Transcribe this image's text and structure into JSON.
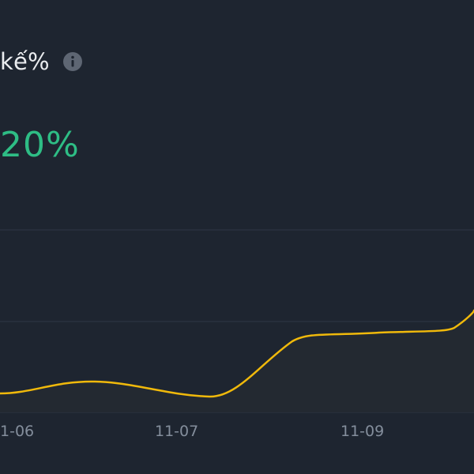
{
  "header": {
    "label": "kế%",
    "info_icon": "info-icon"
  },
  "metric": {
    "value": "20%"
  },
  "colors": {
    "background": "#1e2530",
    "line": "#f0b90b",
    "value": "#2ebd85",
    "grid": "#2f3846",
    "tick": "#848e9c"
  },
  "chart_data": {
    "type": "line",
    "x_ticks": [
      "1-06",
      "11-07",
      "11-09"
    ],
    "grid": true,
    "series": [
      {
        "values": [
          {
            "x": "11-06 00:00",
            "y": 0.6
          },
          {
            "x": "11-06 12:00",
            "y": 0.9
          },
          {
            "x": "11-07 00:00",
            "y": 0.55
          },
          {
            "x": "11-07 12:00",
            "y": 1.6
          },
          {
            "x": "11-08 00:00",
            "y": 1.7
          },
          {
            "x": "11-08 12:00",
            "y": 1.75
          },
          {
            "x": "11-09 00:00",
            "y": 1.8
          },
          {
            "x": "11-09 12:00",
            "y": 2.3
          }
        ]
      }
    ]
  }
}
